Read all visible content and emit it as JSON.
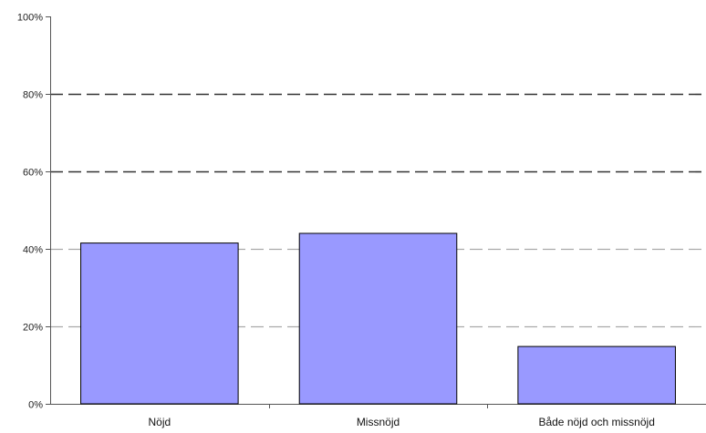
{
  "chart_data": {
    "type": "bar",
    "categories": [
      "Nöjd",
      "Missnöjd",
      "Både nöjd och missnöjd"
    ],
    "values": [
      41.5,
      44,
      14.8
    ],
    "y_ticks": [
      "0%",
      "20%",
      "40%",
      "60%",
      "80%",
      "100%"
    ],
    "ylim": [
      0,
      100
    ],
    "y_unit": "%",
    "grid": true,
    "legend": "none",
    "bar_color": "#9999ff",
    "bar_outline_color": "#000000",
    "gridline_color_major": "#333333",
    "gridline_color_minor": "#aaaaaa"
  }
}
